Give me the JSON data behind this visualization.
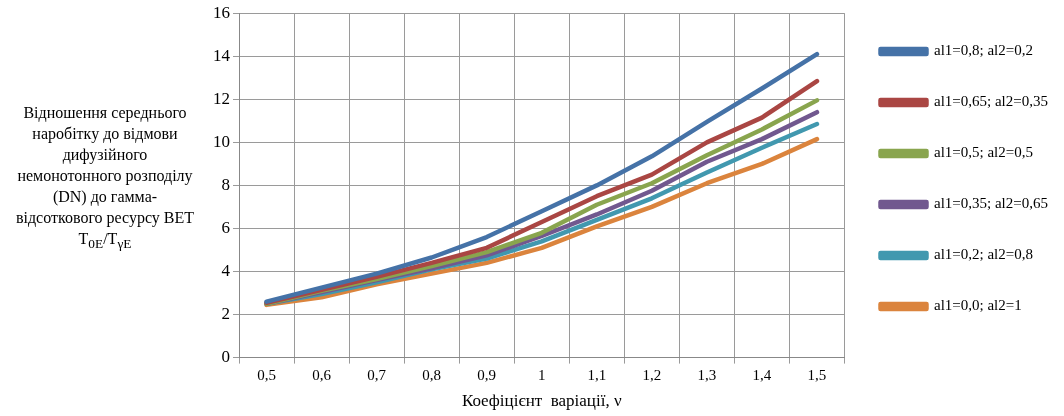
{
  "chart_data": {
    "type": "line",
    "xlabel": "Коефіцієнт  варіації, ν",
    "ylabel": "Відношення середнього наробітку до відмови дифузійного немонотонного розподілу (DN) до гамма-відсоткового ресурсу ВЕТ T$_{0E}$/T$_{γE}$",
    "categories": [
      "0,5",
      "0,6",
      "0,7",
      "0,8",
      "0,9",
      "1",
      "1,1",
      "1,2",
      "1,3",
      "1,4",
      "1,5"
    ],
    "ylim": [
      0,
      16
    ],
    "yticks": [
      0,
      2,
      4,
      6,
      8,
      10,
      12,
      14,
      16
    ],
    "grid": true,
    "legend": "right",
    "marker": "none",
    "line_style": "solid",
    "series": [
      {
        "name": "al1=0,8; al2=0,2",
        "color": "#4572a7",
        "values": [
          2.6,
          3.25,
          3.9,
          4.65,
          5.6,
          6.8,
          8.0,
          9.35,
          10.95,
          12.5,
          14.1
        ]
      },
      {
        "name": "al1=0,65; al2=0,35",
        "color": "#aa4643",
        "values": [
          2.55,
          3.15,
          3.75,
          4.4,
          5.1,
          6.3,
          7.5,
          8.5,
          10.0,
          11.15,
          12.85
        ]
      },
      {
        "name": "al1=0,5; al2=0,5",
        "color": "#89a54e",
        "values": [
          2.5,
          3.1,
          3.65,
          4.25,
          4.9,
          5.8,
          7.1,
          8.1,
          9.4,
          10.6,
          11.95
        ]
      },
      {
        "name": "al1=0,35; al2=0,65",
        "color": "#71588f",
        "values": [
          2.5,
          3.05,
          3.6,
          4.15,
          4.75,
          5.65,
          6.65,
          7.75,
          9.1,
          10.15,
          11.4
        ]
      },
      {
        "name": "al1=0,2; al2=0,8",
        "color": "#4198af",
        "values": [
          2.5,
          2.95,
          3.5,
          4.1,
          4.6,
          5.4,
          6.4,
          7.4,
          8.6,
          9.75,
          10.85
        ]
      },
      {
        "name": "al1=0,0; al2=1",
        "color": "#db843d",
        "values": [
          2.45,
          2.8,
          3.4,
          3.9,
          4.4,
          5.1,
          6.1,
          7.0,
          8.1,
          9.0,
          10.15
        ]
      }
    ]
  }
}
